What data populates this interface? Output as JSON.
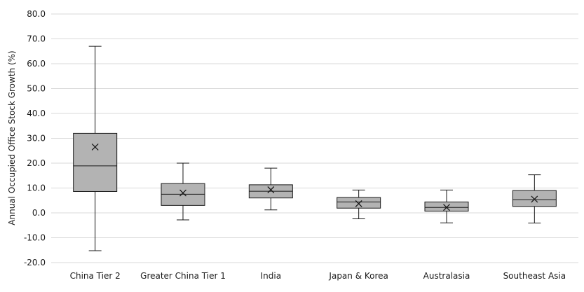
{
  "chart_data": {
    "type": "box",
    "ylabel": "Annual Occupied Office Stock Growth (%)",
    "xlabel": "",
    "ylim": [
      -20,
      80
    ],
    "yticks": [
      80,
      70,
      60,
      50,
      40,
      30,
      20,
      10,
      0,
      -10,
      -20
    ],
    "ytick_labels": [
      "80.0",
      "70.0",
      "60.0",
      "50.0",
      "40.0",
      "30.0",
      "20.0",
      "10.0",
      "0.0",
      "-10.0",
      "-20.0"
    ],
    "grid": true,
    "colors": {
      "box_fill": "#b3b3b3",
      "stroke": "#1a1a1a",
      "grid": "#d9d9d9"
    },
    "categories": [
      "China Tier 2",
      "Greater China Tier 1",
      "India",
      "Japan & Korea",
      "Australasia",
      "Southeast Asia"
    ],
    "boxes": [
      {
        "min": -15.2,
        "q1": 8.6,
        "median": 18.9,
        "q3": 32.0,
        "max": 67.0,
        "mean": 26.5
      },
      {
        "min": -2.8,
        "q1": 3.0,
        "median": 7.5,
        "q3": 11.8,
        "max": 20.0,
        "mean": 8.0
      },
      {
        "min": 1.2,
        "q1": 6.0,
        "median": 8.7,
        "q3": 11.3,
        "max": 18.0,
        "mean": 9.3
      },
      {
        "min": -2.4,
        "q1": 1.9,
        "median": 4.4,
        "q3": 6.2,
        "max": 9.2,
        "mean": 3.7
      },
      {
        "min": -4.0,
        "q1": 0.7,
        "median": 2.2,
        "q3": 4.4,
        "max": 9.2,
        "mean": 2.2
      },
      {
        "min": -4.1,
        "q1": 2.6,
        "median": 5.3,
        "q3": 9.0,
        "max": 15.3,
        "mean": 5.5
      }
    ]
  }
}
